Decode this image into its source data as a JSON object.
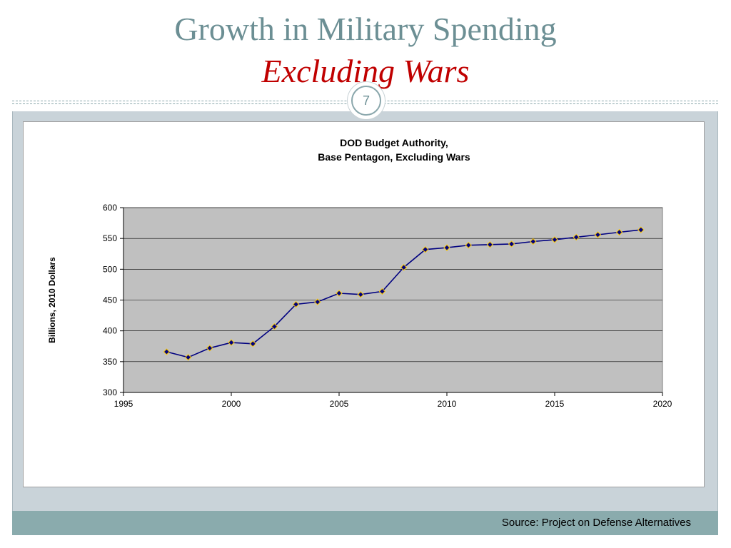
{
  "slide": {
    "title_line1": "Growth in Military Spending",
    "title_line2": "Excluding Wars",
    "page_number": "7",
    "source": "Source: Project on Defense Alternatives"
  },
  "colors": {
    "title": "#6c8f94",
    "subtitle": "#c00000",
    "plot_background": "#c0c0c0",
    "line": "#000080",
    "marker_fill": "#000080",
    "marker_edge": "#ffcc00",
    "footer": "#8aabad"
  },
  "chart_data": {
    "type": "line",
    "title_line1": "DOD Budget Authority,",
    "title_line2": "Base Pentagon, Excluding Wars",
    "xlabel": "",
    "ylabel": "Billions, 2010 Dollars",
    "xlim": [
      1995,
      2020
    ],
    "ylim": [
      300,
      600
    ],
    "xticks": [
      1995,
      2000,
      2005,
      2010,
      2015,
      2020
    ],
    "yticks": [
      300,
      350,
      400,
      450,
      500,
      550,
      600
    ],
    "grid": "horizontal",
    "legend": "none",
    "series": [
      {
        "x": [
          1997,
          1998,
          1999,
          2000,
          2001,
          2002,
          2003,
          2004,
          2005,
          2006,
          2007,
          2008,
          2009,
          2010,
          2011,
          2012,
          2013,
          2014,
          2015,
          2016,
          2017,
          2018,
          2019
        ],
        "y": [
          366,
          357,
          372,
          381,
          379,
          407,
          443,
          447,
          461,
          459,
          464,
          503,
          532,
          535,
          539,
          540,
          541,
          545,
          548,
          552,
          556,
          560,
          564
        ]
      }
    ]
  }
}
